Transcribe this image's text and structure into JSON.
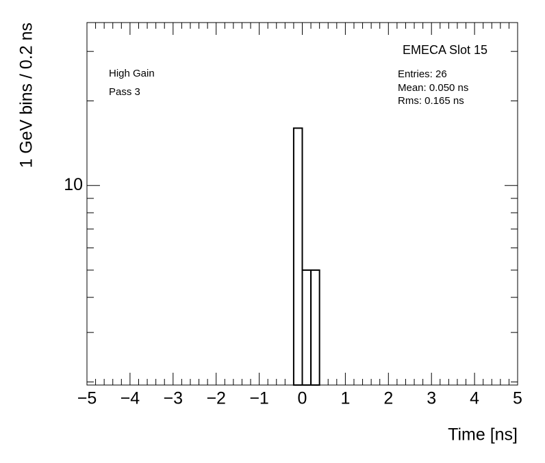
{
  "chart_data": {
    "type": "histogram",
    "title": "EMECA Slot 15",
    "stats": [
      "Entries: 26",
      "Mean: 0.050 ns",
      "Rms: 0.165 ns"
    ],
    "annotations": [
      "High Gain",
      "Pass 3"
    ],
    "x_label": "Time [ns]",
    "y_label": "1 GeV bins / 0.2 ns",
    "bins": [
      -0.2,
      0,
      0.2,
      0.4
    ],
    "values": [
      16,
      5,
      5
    ],
    "color": "#000000",
    "xlim": [
      -5,
      5
    ],
    "xticks": [
      {
        "value": -5,
        "label": "−5"
      },
      {
        "value": -4,
        "label": "−4"
      },
      {
        "value": -3,
        "label": "−3"
      },
      {
        "value": -2,
        "label": "−2"
      },
      {
        "value": -1,
        "label": "−1"
      },
      0,
      1,
      2,
      3,
      4,
      5
    ],
    "ylim": [
      1.95,
      38
    ],
    "yticks": [
      10
    ],
    "log_y": true
  }
}
